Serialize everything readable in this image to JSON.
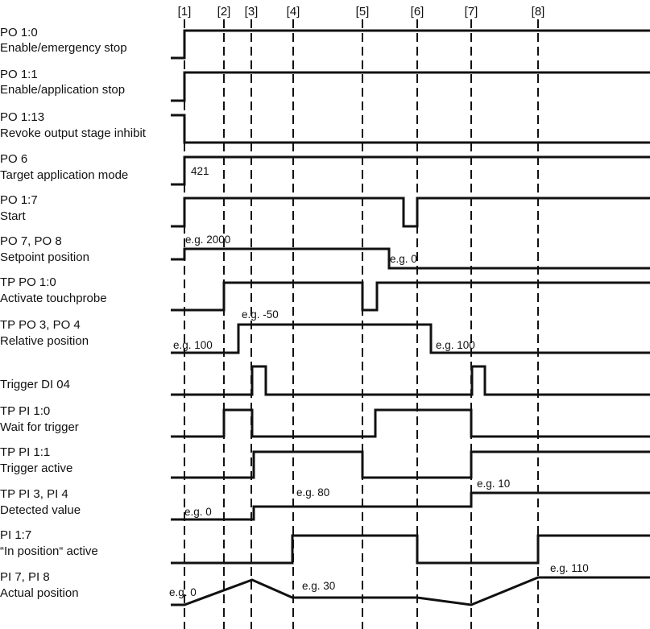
{
  "markers": [
    "[1]",
    "[2]",
    "[3]",
    "[4]",
    "[5]",
    "[6]",
    "[7]",
    "[8]"
  ],
  "signals": [
    {
      "id": "po-1-0",
      "line1": "PO 1:0",
      "line2": "Enable/emergency stop",
      "values": []
    },
    {
      "id": "po-1-1",
      "line1": "PO 1:1",
      "line2": "Enable/application stop",
      "values": []
    },
    {
      "id": "po-1-13",
      "line1": "PO 1:13",
      "line2": "Revoke output stage inhibit",
      "values": []
    },
    {
      "id": "po-6",
      "line1": "PO 6",
      "line2": "Target application mode",
      "values": [
        "421"
      ]
    },
    {
      "id": "po-1-7",
      "line1": "PO 1:7",
      "line2": "Start",
      "values": []
    },
    {
      "id": "po-7-8",
      "line1": "PO 7, PO 8",
      "line2": "Setpoint position",
      "values": [
        "e.g. 2000",
        "e.g. 0"
      ]
    },
    {
      "id": "tp-po-1-0",
      "line1": "TP PO 1:0",
      "line2": "Activate touchprobe",
      "values": []
    },
    {
      "id": "tp-po-3-4",
      "line1": "TP PO 3, PO 4",
      "line2": "Relative position",
      "values": [
        "e.g. 100",
        "e.g. -50",
        "e.g. 100"
      ]
    },
    {
      "id": "trigger-di-04",
      "line1": "Trigger DI 04",
      "line2": "",
      "values": []
    },
    {
      "id": "tp-pi-1-0",
      "line1": "TP PI 1:0",
      "line2": "Wait for trigger",
      "values": []
    },
    {
      "id": "tp-pi-1-1",
      "line1": "TP PI 1:1",
      "line2": "Trigger active",
      "values": []
    },
    {
      "id": "tp-pi-3-4",
      "line1": "TP PI 3, PI 4",
      "line2": "Detected value",
      "values": [
        "e.g. 0",
        "e.g. 80",
        "e.g. 10"
      ]
    },
    {
      "id": "pi-1-7",
      "line1": "PI 1:7",
      "line2": "“In position“ active",
      "values": []
    },
    {
      "id": "pi-7-8",
      "line1": "PI 7, PI 8",
      "line2": "Actual position",
      "values": [
        "e.g. 0",
        "e.g. 30",
        "e.g. 110"
      ]
    }
  ]
}
